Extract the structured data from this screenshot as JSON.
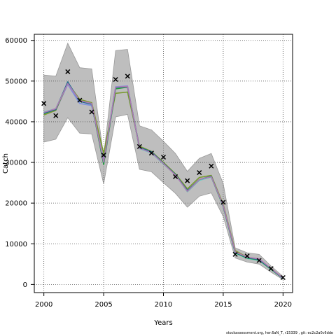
{
  "chart_data": {
    "type": "line",
    "xlabel": "Years",
    "ylabel": "Catch",
    "xlim": [
      1999.2,
      2020.8
    ],
    "ylim": [
      -2000,
      61500
    ],
    "xticks": [
      2000,
      2005,
      2010,
      2015,
      2020
    ],
    "yticks": [
      0,
      10000,
      20000,
      30000,
      40000,
      50000,
      60000
    ],
    "grid": true,
    "x": [
      2000,
      2001,
      2002,
      2003,
      2004,
      2005,
      2006,
      2007,
      2008,
      2009,
      2010,
      2011,
      2012,
      2013,
      2014,
      2015,
      2016,
      2017,
      2018,
      2019,
      2020
    ],
    "band_upper": [
      51500,
      51200,
      59300,
      53300,
      53000,
      31500,
      57500,
      57800,
      39000,
      38000,
      35200,
      32200,
      27800,
      31000,
      32200,
      24800,
      9000,
      7800,
      7400,
      4500,
      2000
    ],
    "band_lower": [
      35000,
      35700,
      41000,
      37200,
      37000,
      24700,
      41200,
      41800,
      28300,
      27700,
      25000,
      22400,
      19000,
      21700,
      22500,
      16700,
      6500,
      5500,
      5000,
      3000,
      1200
    ],
    "observed": [
      {
        "x": 2000,
        "y": 44500
      },
      {
        "x": 2001,
        "y": 41500
      },
      {
        "x": 2002,
        "y": 52300
      },
      {
        "x": 2003,
        "y": 45300
      },
      {
        "x": 2004,
        "y": 42400
      },
      {
        "x": 2005,
        "y": 31800
      },
      {
        "x": 2006,
        "y": 50400
      },
      {
        "x": 2007,
        "y": 51200
      },
      {
        "x": 2008,
        "y": 33900
      },
      {
        "x": 2009,
        "y": 32300
      },
      {
        "x": 2010,
        "y": 31300
      },
      {
        "x": 2011,
        "y": 26500
      },
      {
        "x": 2012,
        "y": 25500
      },
      {
        "x": 2013,
        "y": 27500
      },
      {
        "x": 2014,
        "y": 29100
      },
      {
        "x": 2015,
        "y": 20200
      },
      {
        "x": 2016,
        "y": 7400
      },
      {
        "x": 2017,
        "y": 7000
      },
      {
        "x": 2018,
        "y": 5900
      },
      {
        "x": 2019,
        "y": 3900
      },
      {
        "x": 2020,
        "y": 1700
      }
    ],
    "series": [
      {
        "color": "#7b8fe0",
        "values": [
          42200,
          42800,
          49200,
          44500,
          44000,
          30500,
          48600,
          48800,
          33600,
          32500,
          29800,
          27100,
          23000,
          25700,
          26500,
          19300,
          7900,
          6500,
          6200,
          3800,
          1500
        ]
      },
      {
        "color": "#5fd0c8",
        "values": [
          42400,
          43200,
          49700,
          45300,
          44600,
          30200,
          48300,
          48600,
          33400,
          32300,
          29600,
          27000,
          22800,
          25600,
          26400,
          19200,
          7700,
          6400,
          5900,
          3700,
          1500
        ]
      },
      {
        "color": "#7a9a2e",
        "values": [
          41700,
          42800,
          49500,
          45500,
          44700,
          32200,
          47000,
          47300,
          34000,
          32700,
          30000,
          27200,
          23500,
          26300,
          26800,
          19700,
          8300,
          6700,
          6000,
          3900,
          1600
        ]
      },
      {
        "color": "#1f9e3a",
        "values": [
          42000,
          43100,
          49600,
          45100,
          44400,
          29500,
          48100,
          48500,
          33500,
          32500,
          29700,
          27100,
          22900,
          25800,
          26500,
          19200,
          7800,
          6500,
          6000,
          3700,
          1500
        ]
      },
      {
        "color": "#1a6b8a",
        "values": [
          42100,
          43000,
          49800,
          45000,
          44300,
          30000,
          48400,
          48600,
          33700,
          32600,
          29800,
          27000,
          23100,
          25800,
          26600,
          19300,
          7900,
          6600,
          6100,
          3800,
          1500
        ]
      },
      {
        "color": "#b07ab3",
        "values": [
          42300,
          43200,
          49400,
          45200,
          44500,
          30100,
          48500,
          48700,
          33500,
          32400,
          29700,
          26900,
          22900,
          25800,
          26500,
          19400,
          8000,
          6700,
          6300,
          3900,
          1600
        ]
      }
    ],
    "colors": {
      "band": "#bebebe",
      "band_edge": "#999999",
      "marker": "#000000",
      "grid": "#555555"
    }
  },
  "footnote": "stockassessment.org, her.6aN_T, r15339 , git: ec2c2a0c6dde"
}
